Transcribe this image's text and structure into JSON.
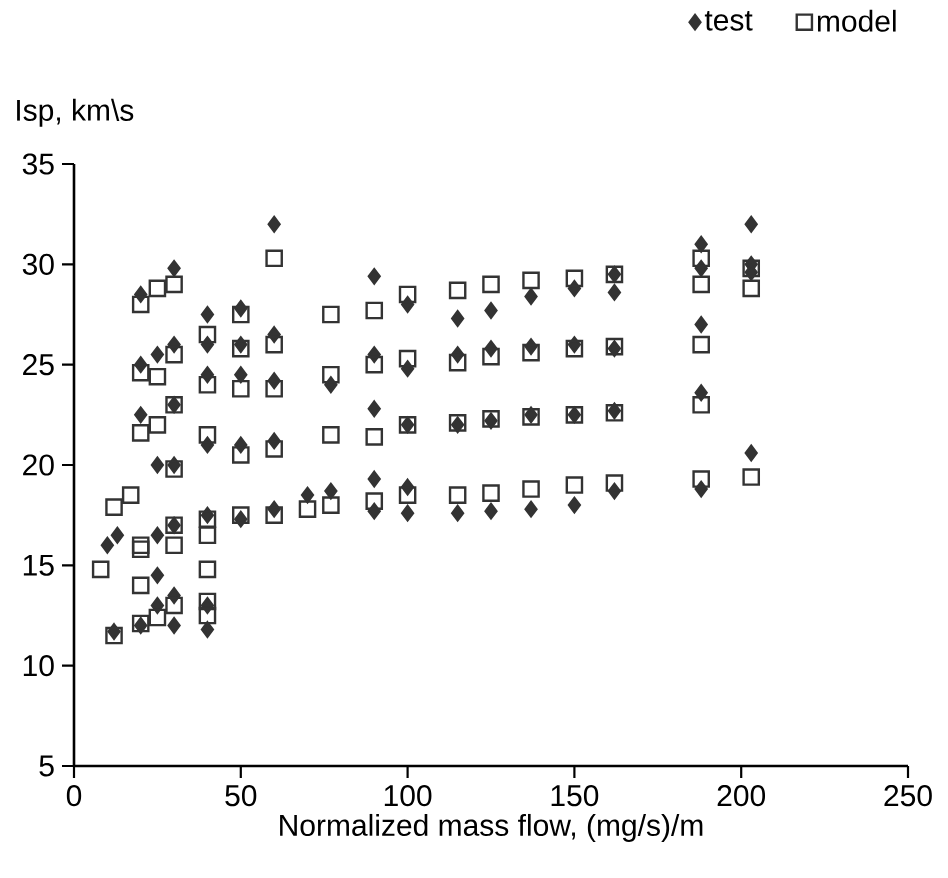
{
  "chart_data": {
    "type": "scatter",
    "xlabel": "Normalized mass flow, (mg/s)/m",
    "ylabel": "Isp, km\\s",
    "xlim": [
      0,
      250
    ],
    "ylim": [
      5,
      35
    ],
    "xticks": [
      0,
      50,
      100,
      150,
      200,
      250
    ],
    "yticks": [
      5,
      10,
      15,
      20,
      25,
      30,
      35
    ],
    "grid": false,
    "legend": "top right",
    "series": [
      {
        "name": "test",
        "color": "#333333",
        "marker": "diamond",
        "x": [
          10,
          12,
          13,
          20,
          20,
          20,
          20,
          25,
          25,
          25,
          25,
          25,
          30,
          30,
          30,
          30,
          30,
          30,
          30,
          40,
          40,
          40,
          40,
          40,
          40,
          40,
          50,
          50,
          50,
          50,
          50,
          60,
          60,
          60,
          60,
          60,
          70,
          77,
          77,
          90,
          90,
          90,
          90,
          90,
          100,
          100,
          100,
          100,
          100,
          115,
          115,
          115,
          115,
          125,
          125,
          125,
          125,
          137,
          137,
          137,
          137,
          150,
          150,
          150,
          150,
          162,
          162,
          162,
          162,
          162,
          188,
          188,
          188,
          188,
          188,
          203,
          203,
          203,
          203
        ],
        "values": [
          16.0,
          11.7,
          16.5,
          12.0,
          22.5,
          25.0,
          28.5,
          13.0,
          14.5,
          16.5,
          20.0,
          25.5,
          12.0,
          13.5,
          17.0,
          20.0,
          23.0,
          26.0,
          29.8,
          11.8,
          13.0,
          17.5,
          21.0,
          24.5,
          26.0,
          27.5,
          17.3,
          21.0,
          24.5,
          26.0,
          27.8,
          17.8,
          21.2,
          24.2,
          26.5,
          32.0,
          18.5,
          18.7,
          24.0,
          17.7,
          19.3,
          22.8,
          25.5,
          29.4,
          17.6,
          18.9,
          22.0,
          24.8,
          28.0,
          17.6,
          22.0,
          25.5,
          27.3,
          17.7,
          22.2,
          25.8,
          27.7,
          17.8,
          22.5,
          25.9,
          28.4,
          18.0,
          22.5,
          26.0,
          28.8,
          18.7,
          22.7,
          25.8,
          29.5,
          28.6,
          18.8,
          23.6,
          27.0,
          29.8,
          31.0,
          20.6,
          30.0,
          32.0,
          29.6
        ]
      },
      {
        "name": "model",
        "color": "#333333",
        "marker": "square",
        "x": [
          8,
          12,
          12,
          17,
          20,
          20,
          20,
          20,
          20,
          20,
          20,
          25,
          25,
          25,
          25,
          30,
          30,
          30,
          30,
          30,
          30,
          30,
          40,
          40,
          40,
          40,
          40,
          40,
          40,
          40,
          50,
          50,
          50,
          50,
          50,
          60,
          60,
          60,
          60,
          60,
          70,
          77,
          77,
          77,
          77,
          90,
          90,
          90,
          90,
          100,
          100,
          100,
          100,
          115,
          115,
          115,
          115,
          125,
          125,
          125,
          125,
          137,
          137,
          137,
          137,
          150,
          150,
          150,
          150,
          162,
          162,
          162,
          162,
          188,
          188,
          188,
          188,
          188,
          203,
          203,
          203
        ],
        "values": [
          14.8,
          11.5,
          17.9,
          18.5,
          12.1,
          14.0,
          15.8,
          16.0,
          21.6,
          24.6,
          28.0,
          12.4,
          22.0,
          24.4,
          28.8,
          13.0,
          16.0,
          17.0,
          19.8,
          23.0,
          25.5,
          29.0,
          12.5,
          13.2,
          14.8,
          16.5,
          17.3,
          21.5,
          24.0,
          26.5,
          17.5,
          20.5,
          23.8,
          25.8,
          27.5,
          17.5,
          20.8,
          23.8,
          26.0,
          30.3,
          17.8,
          18.0,
          21.5,
          24.5,
          27.5,
          18.2,
          21.4,
          25.0,
          27.7,
          18.5,
          22.0,
          25.3,
          28.5,
          18.5,
          22.1,
          25.1,
          28.7,
          18.6,
          22.3,
          25.4,
          29.0,
          18.8,
          22.4,
          25.6,
          29.2,
          19.0,
          22.5,
          25.8,
          29.3,
          19.1,
          22.6,
          25.9,
          29.5,
          19.3,
          23.0,
          26.0,
          29.0,
          30.3,
          19.4,
          28.8,
          29.8
        ]
      }
    ]
  }
}
